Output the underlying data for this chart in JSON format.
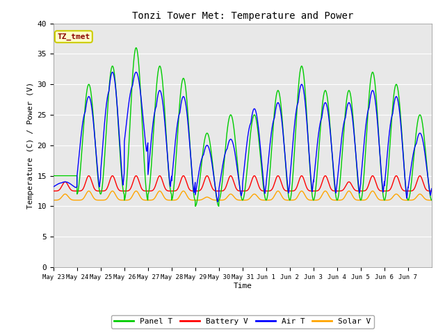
{
  "title": "Tonzi Tower Met: Temperature and Power",
  "xlabel": "Time",
  "ylabel": "Temperature (C) / Power (V)",
  "ylim": [
    0,
    40
  ],
  "yticks": [
    0,
    5,
    10,
    15,
    20,
    25,
    30,
    35,
    40
  ],
  "xlabels": [
    "May 23",
    "May 24",
    "May 25",
    "May 26",
    "May 27",
    "May 28",
    "May 29",
    "May 30",
    "May 31",
    "Jun 1",
    "Jun 2",
    "Jun 3",
    "Jun 4",
    "Jun 5",
    "Jun 6",
    "Jun 7"
  ],
  "annotation_text": "TZ_tmet",
  "annotation_color": "#8B0000",
  "annotation_bg": "#FFFFCC",
  "annotation_edge": "#CCCC00",
  "bg_color": "#E8E8E8",
  "panel_t_color": "#00CC00",
  "battery_v_color": "#FF0000",
  "air_t_color": "#0000FF",
  "solar_v_color": "#FFA500",
  "legend_labels": [
    "Panel T",
    "Battery V",
    "Air T",
    "Solar V"
  ],
  "panel_peaks": [
    15,
    30,
    33,
    36,
    33,
    31,
    22,
    25,
    25,
    29,
    33,
    29,
    29,
    32,
    30,
    25
  ],
  "panel_mins": [
    15,
    12,
    12,
    11,
    12,
    11,
    10,
    11,
    11,
    11,
    11,
    11,
    11,
    11,
    11,
    11
  ],
  "air_peaks": [
    14,
    28,
    32,
    32,
    29,
    28,
    20,
    21,
    26,
    27,
    30,
    27,
    27,
    29,
    28,
    22
  ],
  "air_mins": [
    13,
    12,
    12,
    18,
    12,
    11,
    10,
    11,
    11,
    11,
    11,
    11,
    11,
    11,
    10,
    11
  ],
  "batt_peaks": [
    14,
    15,
    15,
    15,
    15,
    15,
    15,
    15,
    15,
    15,
    15,
    15,
    14,
    15,
    15,
    15
  ],
  "batt_mins": [
    12.5,
    12.5,
    12.5,
    12.5,
    12.5,
    12.5,
    12.5,
    12.5,
    12.5,
    12.5,
    12.5,
    12.5,
    12.5,
    12.5,
    12.5,
    12.5
  ],
  "solar_peaks": [
    12,
    12.5,
    12.5,
    12.5,
    12.5,
    12.5,
    11.5,
    12,
    12,
    12.5,
    12.5,
    12.5,
    12.5,
    12.5,
    12,
    12
  ],
  "solar_mins": [
    11,
    11,
    11,
    11,
    11,
    11,
    11,
    11,
    11,
    11,
    11,
    11,
    11,
    11,
    11,
    11
  ]
}
